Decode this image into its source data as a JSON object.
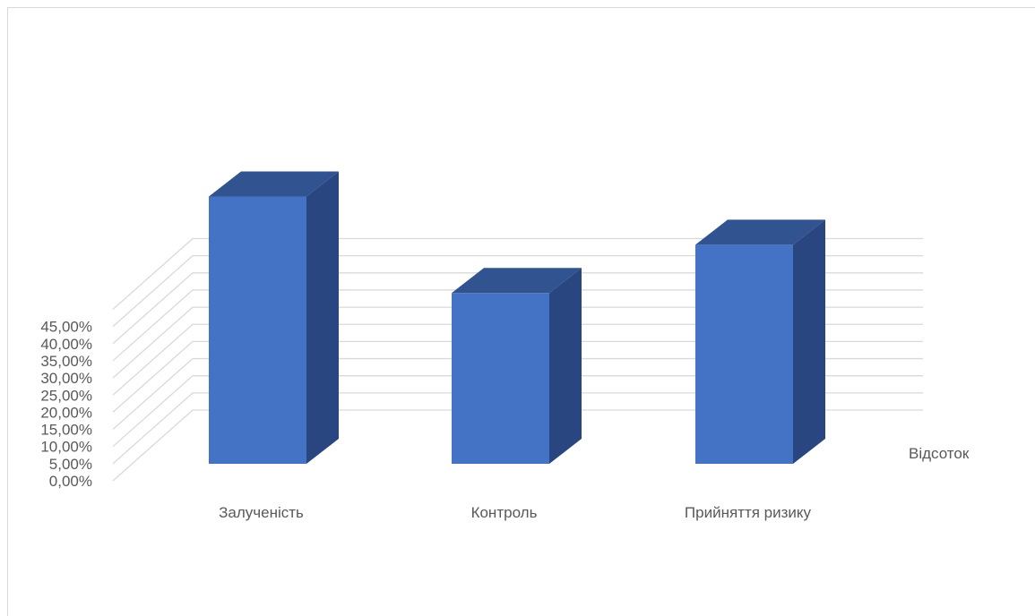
{
  "chart_data": {
    "type": "bar",
    "style": "3d-column",
    "categories": [
      "Залученість",
      "Контроль",
      "Прийняття ризику"
    ],
    "series": [
      {
        "name": "Відсоток",
        "values": [
          0.41,
          0.262,
          0.336
        ],
        "color": "#4472C4",
        "side_color": "#2A4680",
        "top_color": "#31538F"
      }
    ],
    "yticks": [
      "0,00%",
      "5,00%",
      "10,00%",
      "15,00%",
      "20,00%",
      "25,00%",
      "30,00%",
      "35,00%",
      "40,00%",
      "45,00%"
    ],
    "ylim": [
      0,
      0.45
    ],
    "grid": true,
    "legend_position": "right",
    "gridline_color": "#d9d9d9",
    "text_color": "#595959"
  }
}
